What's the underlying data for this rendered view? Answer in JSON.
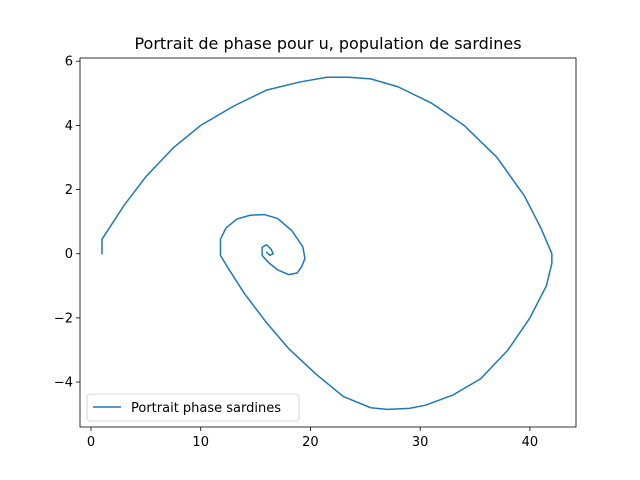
{
  "chart_data": {
    "type": "line",
    "title": "Portrait de phase pour u, population de sardines",
    "xlabel": "",
    "ylabel": "",
    "xlim": [
      -1.0,
      44.2
    ],
    "ylim": [
      -5.4,
      6.1
    ],
    "xticks": [
      0,
      10,
      20,
      30,
      40
    ],
    "yticks": [
      -4,
      -2,
      0,
      2,
      4,
      6
    ],
    "xtick_labels": [
      "0",
      "10",
      "20",
      "30",
      "40"
    ],
    "ytick_labels": [
      "−4",
      "−2",
      "0",
      "2",
      "4",
      "6"
    ],
    "grid": false,
    "legend_position": "lower-left",
    "series": [
      {
        "name": "Portrait phase sardines",
        "color": "#1f77b4",
        "x": [
          1.0,
          1.0,
          1.1,
          3.0,
          5.0,
          7.5,
          10.0,
          13.0,
          16.0,
          19.0,
          21.5,
          23.5,
          25.5,
          28.0,
          31.0,
          34.0,
          37.0,
          39.5,
          41.0,
          42.0,
          42.0,
          41.5,
          40.0,
          38.0,
          35.5,
          33.0,
          30.5,
          29.0,
          27.0,
          25.5,
          23.0,
          20.5,
          18.0,
          16.0,
          14.0,
          12.5,
          11.8,
          11.8,
          12.3,
          13.3,
          14.5,
          15.8,
          17.0,
          18.3,
          19.3,
          19.5,
          19.2,
          18.8,
          18.0,
          17.0,
          16.2,
          15.6,
          15.6,
          16.0,
          16.4,
          16.6,
          16.3,
          16.0
        ],
        "y": [
          0.0,
          0.45,
          0.5,
          1.5,
          2.4,
          3.3,
          4.0,
          4.6,
          5.1,
          5.35,
          5.5,
          5.5,
          5.45,
          5.2,
          4.7,
          4.0,
          3.0,
          1.8,
          0.8,
          0.0,
          -0.3,
          -1.0,
          -2.0,
          -3.0,
          -3.9,
          -4.4,
          -4.72,
          -4.82,
          -4.85,
          -4.8,
          -4.45,
          -3.75,
          -2.95,
          -2.15,
          -1.25,
          -0.45,
          -0.05,
          0.45,
          0.8,
          1.08,
          1.2,
          1.22,
          1.1,
          0.72,
          0.22,
          -0.15,
          -0.4,
          -0.6,
          -0.65,
          -0.5,
          -0.28,
          -0.05,
          0.2,
          0.28,
          0.15,
          0.0,
          -0.05,
          0.05
        ]
      }
    ]
  }
}
